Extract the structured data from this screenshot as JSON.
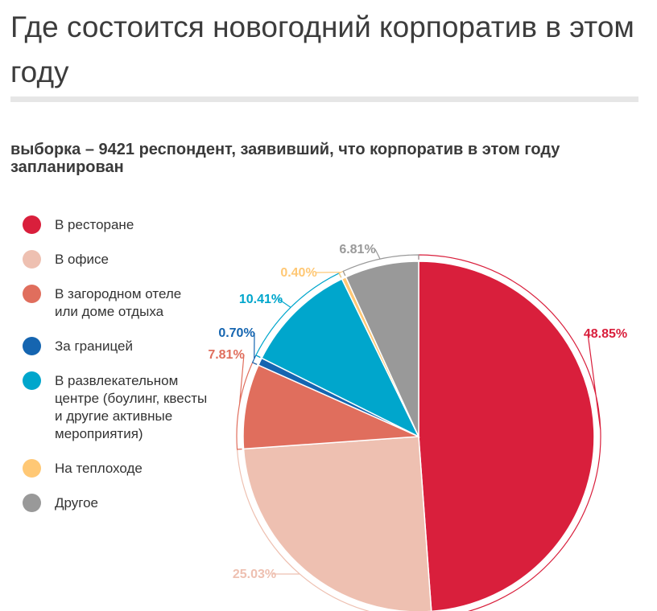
{
  "header": {
    "title": "Где состоится новогодний корпоратив в этом году",
    "subtitle": "выборка – 9421 респондент, заявивший, что корпоратив в этом году запланирован"
  },
  "chart_data": {
    "type": "pie",
    "title": "Где состоится новогодний корпоратив в этом году",
    "subtitle": "выборка – 9421 респондент, заявивший, что корпоратив в этом году запланирован",
    "legend_position": "left",
    "start_angle_deg": 0,
    "direction": "clockwise",
    "slices": [
      {
        "label": "В ресторане",
        "value": 48.85,
        "display": "48.85%",
        "color": "#d91f3c"
      },
      {
        "label": "В офисе",
        "value": 25.03,
        "display": "25.03%",
        "color": "#eec0b1"
      },
      {
        "label": "В загородном отеле или доме отдыха",
        "value": 7.81,
        "display": "7.81%",
        "color": "#e06e5d"
      },
      {
        "label": "За границей",
        "value": 0.7,
        "display": "0.70%",
        "color": "#1565b0"
      },
      {
        "label": "В развлекательном центре (боулинг, квесты и другие активные мероприятия)",
        "value": 10.41,
        "display": "10.41%",
        "color": "#00a6cc"
      },
      {
        "label": "На теплоходе",
        "value": 0.4,
        "display": "0.40%",
        "color": "#ffc875"
      },
      {
        "label": "Другое",
        "value": 6.81,
        "display": "6.81%",
        "color": "#999999"
      }
    ]
  }
}
